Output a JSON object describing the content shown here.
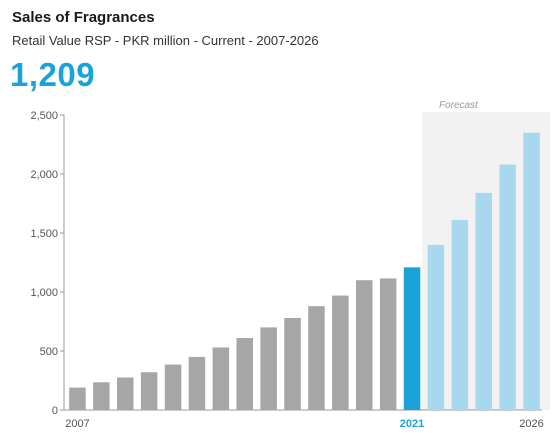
{
  "header": {
    "title": "Sales of Fragrances",
    "subtitle": "Retail Value RSP - PKR million - Current - 2007-2026",
    "current_value": "1,209"
  },
  "chart_data": {
    "type": "bar",
    "title": "Sales of Fragrances",
    "subtitle": "Retail Value RSP - PKR million - Current - 2007-2026",
    "forecast_label": "Forecast",
    "forecast_start_year": 2022,
    "highlight_year": 2021,
    "ylim": [
      0,
      2500
    ],
    "yticks": [
      0,
      500,
      1000,
      1500,
      2000,
      2500
    ],
    "ytick_labels": [
      "0",
      "500",
      "1,000",
      "1,500",
      "2,000",
      "2,500"
    ],
    "x_labels_shown": {
      "2007": "2007",
      "2021": "2021",
      "2026": "2026"
    },
    "categories": [
      "2007",
      "2008",
      "2009",
      "2010",
      "2011",
      "2012",
      "2013",
      "2014",
      "2015",
      "2016",
      "2017",
      "2018",
      "2019",
      "2020",
      "2021",
      "2022",
      "2023",
      "2024",
      "2025",
      "2026"
    ],
    "values": [
      190,
      235,
      275,
      320,
      385,
      450,
      530,
      610,
      700,
      780,
      880,
      970,
      1100,
      1115,
      1209,
      1400,
      1610,
      1840,
      2080,
      2350
    ],
    "colors": {
      "historic": "#a6a6a6",
      "current": "#1aa3da",
      "forecast": "#a8d8ee",
      "forecast_band": "#f2f2f2",
      "highlight_text": "#1aa3da"
    }
  }
}
